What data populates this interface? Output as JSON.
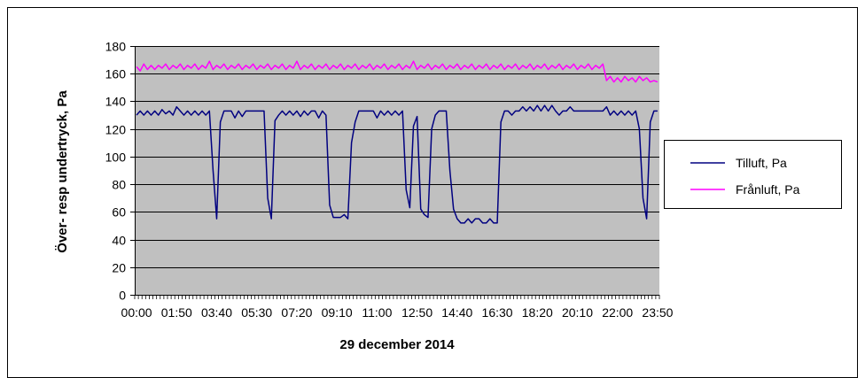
{
  "chart_data": {
    "type": "line",
    "xlabel": "29 december 2014",
    "ylabel": "Över- resp undertryck,  Pa",
    "ylim": [
      0,
      180
    ],
    "y_ticks": [
      0,
      20,
      40,
      60,
      80,
      100,
      120,
      140,
      160,
      180
    ],
    "x_range": [
      "00:00",
      "23:50"
    ],
    "x_step_minutes": 10,
    "x_tick_labels": [
      "00:00",
      "01:50",
      "03:40",
      "05:30",
      "07:20",
      "09:10",
      "11:00",
      "12:50",
      "14:40",
      "16:30",
      "18:20",
      "20:10",
      "22:00",
      "23:50"
    ],
    "grid": true,
    "plot_background": "#c0c0c0",
    "legend_position": "right",
    "series": [
      {
        "name": "Tilluft, Pa",
        "color": "#000080",
        "points": [
          [
            "00:00",
            130
          ],
          [
            "00:10",
            133
          ],
          [
            "00:20",
            130
          ],
          [
            "00:30",
            133
          ],
          [
            "00:40",
            130
          ],
          [
            "00:50",
            133
          ],
          [
            "01:00",
            130
          ],
          [
            "01:10",
            134
          ],
          [
            "01:20",
            131
          ],
          [
            "01:30",
            133
          ],
          [
            "01:40",
            130
          ],
          [
            "01:50",
            136
          ],
          [
            "02:00",
            133
          ],
          [
            "02:10",
            130
          ],
          [
            "02:20",
            133
          ],
          [
            "02:30",
            130
          ],
          [
            "02:40",
            133
          ],
          [
            "02:50",
            130
          ],
          [
            "03:00",
            133
          ],
          [
            "03:10",
            130
          ],
          [
            "03:20",
            133
          ],
          [
            "03:30",
            90
          ],
          [
            "03:40",
            55
          ],
          [
            "03:50",
            125
          ],
          [
            "04:00",
            133
          ],
          [
            "04:10",
            133
          ],
          [
            "04:20",
            133
          ],
          [
            "04:30",
            128
          ],
          [
            "04:40",
            133
          ],
          [
            "04:50",
            129
          ],
          [
            "05:00",
            133
          ],
          [
            "05:10",
            133
          ],
          [
            "05:20",
            133
          ],
          [
            "05:30",
            133
          ],
          [
            "05:40",
            133
          ],
          [
            "05:50",
            133
          ],
          [
            "06:00",
            70
          ],
          [
            "06:10",
            55
          ],
          [
            "06:20",
            126
          ],
          [
            "06:30",
            130
          ],
          [
            "06:40",
            133
          ],
          [
            "06:50",
            130
          ],
          [
            "07:00",
            133
          ],
          [
            "07:10",
            130
          ],
          [
            "07:20",
            133
          ],
          [
            "07:30",
            129
          ],
          [
            "07:40",
            133
          ],
          [
            "07:50",
            130
          ],
          [
            "08:00",
            133
          ],
          [
            "08:10",
            133
          ],
          [
            "08:20",
            128
          ],
          [
            "08:30",
            133
          ],
          [
            "08:40",
            130
          ],
          [
            "08:50",
            65
          ],
          [
            "09:00",
            56
          ],
          [
            "09:10",
            56
          ],
          [
            "09:20",
            56
          ],
          [
            "09:30",
            58
          ],
          [
            "09:40",
            55
          ],
          [
            "09:50",
            110
          ],
          [
            "10:00",
            125
          ],
          [
            "10:10",
            133
          ],
          [
            "10:20",
            133
          ],
          [
            "10:30",
            133
          ],
          [
            "10:40",
            133
          ],
          [
            "10:50",
            133
          ],
          [
            "11:00",
            128
          ],
          [
            "11:10",
            133
          ],
          [
            "11:20",
            130
          ],
          [
            "11:30",
            133
          ],
          [
            "11:40",
            130
          ],
          [
            "11:50",
            133
          ],
          [
            "12:00",
            130
          ],
          [
            "12:10",
            133
          ],
          [
            "12:20",
            76
          ],
          [
            "12:30",
            63
          ],
          [
            "12:40",
            122
          ],
          [
            "12:50",
            129
          ],
          [
            "13:00",
            62
          ],
          [
            "13:10",
            58
          ],
          [
            "13:20",
            56
          ],
          [
            "13:30",
            120
          ],
          [
            "13:40",
            130
          ],
          [
            "13:50",
            133
          ],
          [
            "14:00",
            133
          ],
          [
            "14:10",
            133
          ],
          [
            "14:20",
            90
          ],
          [
            "14:30",
            62
          ],
          [
            "14:40",
            55
          ],
          [
            "14:50",
            52
          ],
          [
            "15:00",
            52
          ],
          [
            "15:10",
            55
          ],
          [
            "15:20",
            52
          ],
          [
            "15:30",
            55
          ],
          [
            "15:40",
            55
          ],
          [
            "15:50",
            52
          ],
          [
            "16:00",
            52
          ],
          [
            "16:10",
            55
          ],
          [
            "16:20",
            52
          ],
          [
            "16:30",
            52
          ],
          [
            "16:40",
            125
          ],
          [
            "16:50",
            133
          ],
          [
            "17:00",
            133
          ],
          [
            "17:10",
            130
          ],
          [
            "17:20",
            133
          ],
          [
            "17:30",
            133
          ],
          [
            "17:40",
            136
          ],
          [
            "17:50",
            133
          ],
          [
            "18:00",
            136
          ],
          [
            "18:10",
            133
          ],
          [
            "18:20",
            137
          ],
          [
            "18:30",
            133
          ],
          [
            "18:40",
            137
          ],
          [
            "18:50",
            133
          ],
          [
            "19:00",
            137
          ],
          [
            "19:10",
            133
          ],
          [
            "19:20",
            130
          ],
          [
            "19:30",
            133
          ],
          [
            "19:40",
            133
          ],
          [
            "19:50",
            136
          ],
          [
            "20:00",
            133
          ],
          [
            "20:10",
            133
          ],
          [
            "20:20",
            133
          ],
          [
            "20:30",
            133
          ],
          [
            "20:40",
            133
          ],
          [
            "20:50",
            133
          ],
          [
            "21:00",
            133
          ],
          [
            "21:10",
            133
          ],
          [
            "21:20",
            133
          ],
          [
            "21:30",
            136
          ],
          [
            "21:40",
            130
          ],
          [
            "21:50",
            133
          ],
          [
            "22:00",
            130
          ],
          [
            "22:10",
            133
          ],
          [
            "22:20",
            130
          ],
          [
            "22:30",
            133
          ],
          [
            "22:40",
            130
          ],
          [
            "22:50",
            133
          ],
          [
            "23:00",
            120
          ],
          [
            "23:10",
            70
          ],
          [
            "23:20",
            55
          ],
          [
            "23:30",
            125
          ],
          [
            "23:40",
            133
          ],
          [
            "23:50",
            133
          ]
        ]
      },
      {
        "name": "Frånluft, Pa",
        "color": "#ff00ff",
        "points": [
          [
            "00:00",
            165
          ],
          [
            "00:10",
            162
          ],
          [
            "00:20",
            167
          ],
          [
            "00:30",
            163
          ],
          [
            "00:40",
            166
          ],
          [
            "00:50",
            163
          ],
          [
            "01:00",
            166
          ],
          [
            "01:10",
            164
          ],
          [
            "01:20",
            167
          ],
          [
            "01:30",
            163
          ],
          [
            "01:40",
            166
          ],
          [
            "01:50",
            164
          ],
          [
            "02:00",
            167
          ],
          [
            "02:10",
            163
          ],
          [
            "02:20",
            166
          ],
          [
            "02:30",
            164
          ],
          [
            "02:40",
            167
          ],
          [
            "02:50",
            163
          ],
          [
            "03:00",
            166
          ],
          [
            "03:10",
            164
          ],
          [
            "03:20",
            169
          ],
          [
            "03:30",
            163
          ],
          [
            "03:40",
            166
          ],
          [
            "03:50",
            164
          ],
          [
            "04:00",
            167
          ],
          [
            "04:10",
            163
          ],
          [
            "04:20",
            166
          ],
          [
            "04:30",
            164
          ],
          [
            "04:40",
            167
          ],
          [
            "04:50",
            163
          ],
          [
            "05:00",
            166
          ],
          [
            "05:10",
            164
          ],
          [
            "05:20",
            167
          ],
          [
            "05:30",
            163
          ],
          [
            "05:40",
            166
          ],
          [
            "05:50",
            164
          ],
          [
            "06:00",
            167
          ],
          [
            "06:10",
            163
          ],
          [
            "06:20",
            166
          ],
          [
            "06:30",
            164
          ],
          [
            "06:40",
            167
          ],
          [
            "06:50",
            163
          ],
          [
            "07:00",
            166
          ],
          [
            "07:10",
            164
          ],
          [
            "07:20",
            169
          ],
          [
            "07:30",
            163
          ],
          [
            "07:40",
            166
          ],
          [
            "07:50",
            164
          ],
          [
            "08:00",
            167
          ],
          [
            "08:10",
            163
          ],
          [
            "08:20",
            166
          ],
          [
            "08:30",
            164
          ],
          [
            "08:40",
            167
          ],
          [
            "08:50",
            163
          ],
          [
            "09:00",
            166
          ],
          [
            "09:10",
            164
          ],
          [
            "09:20",
            167
          ],
          [
            "09:30",
            163
          ],
          [
            "09:40",
            166
          ],
          [
            "09:50",
            164
          ],
          [
            "10:00",
            167
          ],
          [
            "10:10",
            163
          ],
          [
            "10:20",
            166
          ],
          [
            "10:30",
            164
          ],
          [
            "10:40",
            167
          ],
          [
            "10:50",
            163
          ],
          [
            "11:00",
            166
          ],
          [
            "11:10",
            164
          ],
          [
            "11:20",
            167
          ],
          [
            "11:30",
            163
          ],
          [
            "11:40",
            166
          ],
          [
            "11:50",
            164
          ],
          [
            "12:00",
            167
          ],
          [
            "12:10",
            163
          ],
          [
            "12:20",
            166
          ],
          [
            "12:30",
            164
          ],
          [
            "12:40",
            169
          ],
          [
            "12:50",
            163
          ],
          [
            "13:00",
            166
          ],
          [
            "13:10",
            164
          ],
          [
            "13:20",
            167
          ],
          [
            "13:30",
            163
          ],
          [
            "13:40",
            166
          ],
          [
            "13:50",
            164
          ],
          [
            "14:00",
            167
          ],
          [
            "14:10",
            163
          ],
          [
            "14:20",
            166
          ],
          [
            "14:30",
            164
          ],
          [
            "14:40",
            167
          ],
          [
            "14:50",
            163
          ],
          [
            "15:00",
            166
          ],
          [
            "15:10",
            164
          ],
          [
            "15:20",
            167
          ],
          [
            "15:30",
            163
          ],
          [
            "15:40",
            166
          ],
          [
            "15:50",
            164
          ],
          [
            "16:00",
            167
          ],
          [
            "16:10",
            163
          ],
          [
            "16:20",
            166
          ],
          [
            "16:30",
            164
          ],
          [
            "16:40",
            167
          ],
          [
            "16:50",
            163
          ],
          [
            "17:00",
            166
          ],
          [
            "17:10",
            164
          ],
          [
            "17:20",
            167
          ],
          [
            "17:30",
            163
          ],
          [
            "17:40",
            166
          ],
          [
            "17:50",
            164
          ],
          [
            "18:00",
            167
          ],
          [
            "18:10",
            163
          ],
          [
            "18:20",
            166
          ],
          [
            "18:30",
            164
          ],
          [
            "18:40",
            167
          ],
          [
            "18:50",
            163
          ],
          [
            "19:00",
            166
          ],
          [
            "19:10",
            164
          ],
          [
            "19:20",
            167
          ],
          [
            "19:30",
            163
          ],
          [
            "19:40",
            166
          ],
          [
            "19:50",
            164
          ],
          [
            "20:00",
            167
          ],
          [
            "20:10",
            163
          ],
          [
            "20:20",
            166
          ],
          [
            "20:30",
            164
          ],
          [
            "20:40",
            167
          ],
          [
            "20:50",
            163
          ],
          [
            "21:00",
            166
          ],
          [
            "21:10",
            164
          ],
          [
            "21:20",
            167
          ],
          [
            "21:30",
            155
          ],
          [
            "21:40",
            158
          ],
          [
            "21:50",
            154
          ],
          [
            "22:00",
            157
          ],
          [
            "22:10",
            154
          ],
          [
            "22:20",
            158
          ],
          [
            "22:30",
            155
          ],
          [
            "22:40",
            157
          ],
          [
            "22:50",
            154
          ],
          [
            "23:00",
            158
          ],
          [
            "23:10",
            155
          ],
          [
            "23:20",
            157
          ],
          [
            "23:30",
            154
          ],
          [
            "23:40",
            155
          ],
          [
            "23:50",
            154
          ]
        ]
      }
    ]
  }
}
